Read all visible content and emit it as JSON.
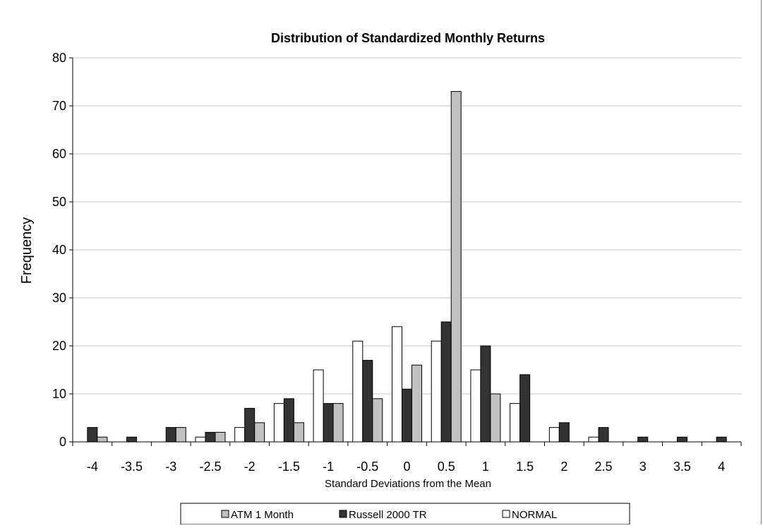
{
  "chart_data": {
    "type": "bar",
    "title": "Distribution of Standardized Monthly Returns",
    "xlabel": "Standard Deviations from the Mean",
    "ylabel": "Frequency",
    "ylim": [
      0,
      80
    ],
    "yticks": [
      0,
      10,
      20,
      30,
      40,
      50,
      60,
      70,
      80
    ],
    "categories": [
      "-4",
      "-3.5",
      "-3",
      "-2.5",
      "-2",
      "-1.5",
      "-1",
      "-0.5",
      "0",
      "0.5",
      "1",
      "1.5",
      "2",
      "2.5",
      "3",
      "3.5",
      "4"
    ],
    "series": [
      {
        "name": "NORMAL",
        "color": "#ffffff",
        "values": [
          0,
          0,
          0,
          1,
          3,
          8,
          15,
          21,
          24,
          21,
          15,
          8,
          3,
          1,
          0,
          0,
          0
        ]
      },
      {
        "name": "Russell 2000 TR",
        "color": "#333333",
        "values": [
          3,
          1,
          3,
          2,
          7,
          9,
          8,
          17,
          11,
          25,
          20,
          14,
          4,
          3,
          1,
          1,
          1
        ]
      },
      {
        "name": "ATM 1 Month",
        "color": "#c0c0c0",
        "values": [
          1,
          0,
          3,
          2,
          4,
          4,
          8,
          9,
          16,
          73,
          10,
          0,
          0,
          0,
          0,
          0,
          0
        ]
      }
    ],
    "legend": {
      "position": "bottom",
      "order": [
        "ATM 1 Month",
        "Russell 2000 TR",
        "NORMAL"
      ]
    },
    "grid": true
  }
}
